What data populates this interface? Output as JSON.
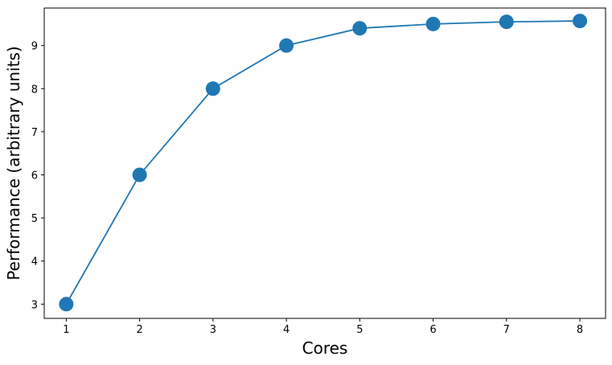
{
  "chart_data": {
    "type": "line",
    "title": "",
    "xlabel": "Cores",
    "ylabel": "Performance (arbitrary units)",
    "x": [
      1,
      2,
      3,
      4,
      5,
      6,
      7,
      8
    ],
    "series": [
      {
        "values": [
          3.0,
          6.0,
          8.0,
          9.0,
          9.4,
          9.5,
          9.55,
          9.57
        ]
      }
    ],
    "xlim": [
      0.7,
      8.35
    ],
    "ylim": [
      2.67,
      9.87
    ],
    "xticks": [
      1,
      2,
      3,
      4,
      5,
      6,
      7,
      8
    ],
    "yticks": [
      3,
      4,
      5,
      6,
      7,
      8,
      9
    ],
    "grid": false,
    "marker": "circle",
    "color": "#1f77b4"
  }
}
